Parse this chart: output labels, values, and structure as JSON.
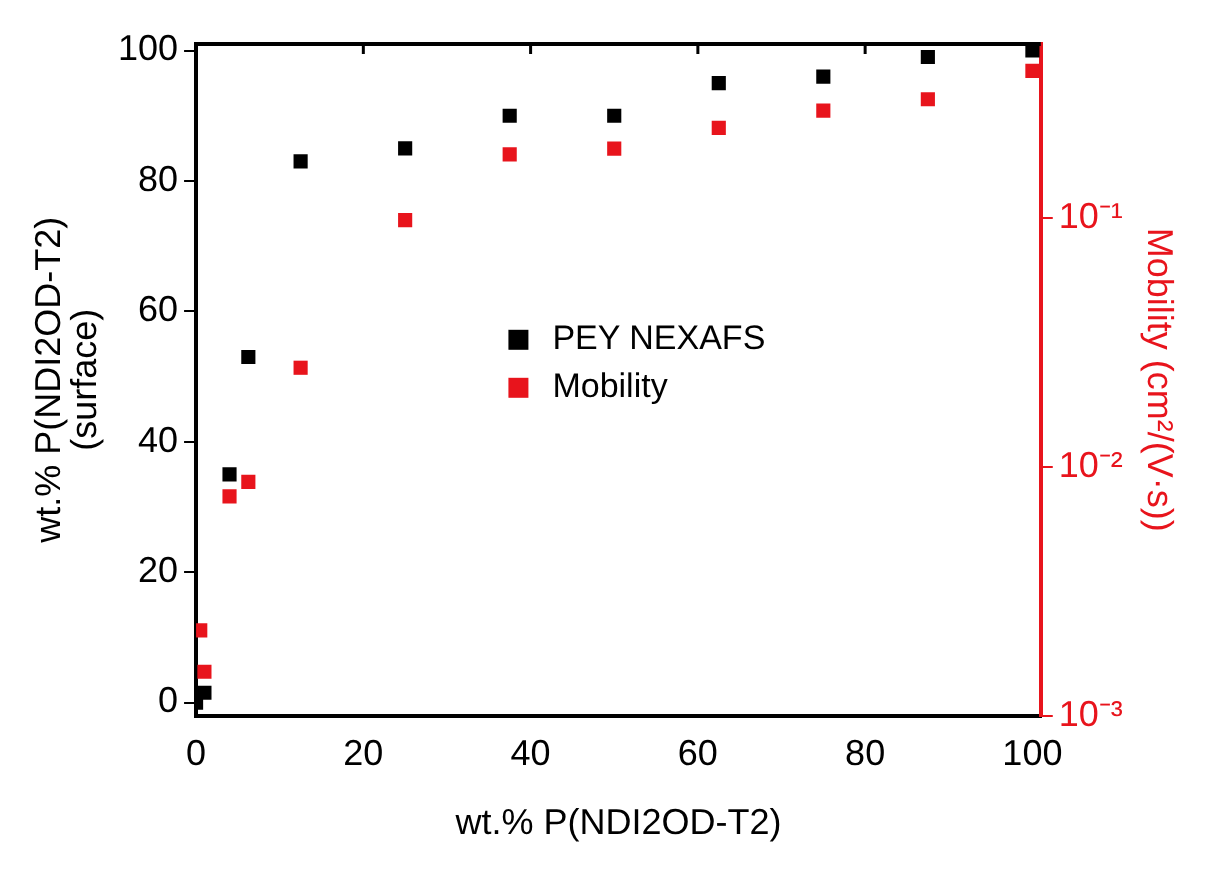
{
  "chart_data": {
    "type": "scatter",
    "xlabel": "wt.% P(NDI2OD-T2)",
    "ylabel": "wt.% P(NDI2OD-T2)\n(surface)",
    "y2label": "Mobility (cm²/(V·s))",
    "marker": "square",
    "legend": "center",
    "grid": false,
    "xlim": [
      0,
      101
    ],
    "xticks": [
      0,
      20,
      40,
      60,
      80,
      100
    ],
    "ylim": [
      -2,
      101
    ],
    "yticks": [
      0,
      20,
      40,
      60,
      80,
      100
    ],
    "log": "y2",
    "y2lim": [
      0.001,
      0.5
    ],
    "y2ticks": [
      {
        "value": 0.001,
        "label": "10⁻³"
      },
      {
        "value": 0.01,
        "label": "10⁻²"
      },
      {
        "value": 0.1,
        "label": "10⁻¹"
      }
    ],
    "series": [
      {
        "name": "PEY NEXAFS",
        "color": "#000000",
        "x": [
          0,
          0.5,
          1,
          4,
          6.25,
          12.5,
          25,
          37.5,
          50,
          62.5,
          75,
          87.5,
          100
        ],
        "values": [
          0,
          null,
          1.5,
          35,
          53,
          83,
          85,
          90,
          90,
          95,
          96,
          99,
          100
        ]
      },
      {
        "name": "Mobility",
        "color": "#e8141c",
        "axis": "y2",
        "x": [
          0.5,
          1,
          4,
          6.25,
          12.5,
          25,
          37.5,
          50,
          62.5,
          75,
          87.5,
          100
        ],
        "values": [
          0.0022,
          0.0015,
          0.0076,
          0.0087,
          0.025,
          0.098,
          0.18,
          0.19,
          0.23,
          0.27,
          0.3,
          0.39
        ]
      }
    ]
  }
}
